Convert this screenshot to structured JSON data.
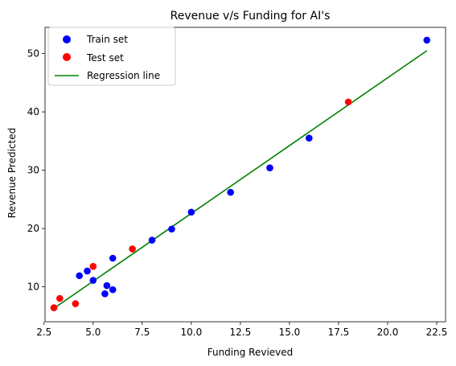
{
  "chart_data": {
    "type": "scatter",
    "title": "Revenue v/s Funding for AI's",
    "xlabel": "Funding Revieved",
    "ylabel": "Revenue Predicted",
    "xlim": [
      2.55,
      22.95
    ],
    "ylim": [
      4.0,
      54.5
    ],
    "xticks": [
      2.5,
      5.0,
      7.5,
      10.0,
      12.5,
      15.0,
      17.5,
      20.0,
      22.5
    ],
    "xtick_labels": [
      "2.5",
      "5.0",
      "7.5",
      "10.0",
      "12.5",
      "15.0",
      "17.5",
      "20.0",
      "22.5"
    ],
    "yticks": [
      10,
      20,
      30,
      40,
      50
    ],
    "ytick_labels": [
      "10",
      "20",
      "30",
      "40",
      "50"
    ],
    "grid": false,
    "legend_position": "top-left",
    "series": [
      {
        "name": "Train set",
        "kind": "scatter",
        "color": "#0000ff",
        "x": [
          22.0,
          16.0,
          14.0,
          12.0,
          10.0,
          9.0,
          8.0,
          6.0,
          5.0,
          4.7,
          4.3,
          5.7,
          6.0,
          5.6
        ],
        "y": [
          52.3,
          35.5,
          30.4,
          26.2,
          22.8,
          19.9,
          18.0,
          14.9,
          11.1,
          12.7,
          11.9,
          10.2,
          9.5,
          8.8
        ]
      },
      {
        "name": "Test set",
        "kind": "scatter",
        "color": "#ff0000",
        "x": [
          18.0,
          7.0,
          5.0,
          3.3,
          3.0,
          4.1
        ],
        "y": [
          41.7,
          16.5,
          13.5,
          8.0,
          6.4,
          7.1
        ]
      },
      {
        "name": "Regression line",
        "kind": "line",
        "color": "#008000",
        "x": [
          3.0,
          22.0
        ],
        "y": [
          6.3,
          50.5
        ]
      }
    ]
  }
}
